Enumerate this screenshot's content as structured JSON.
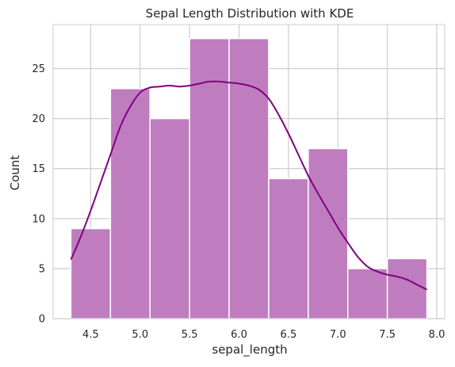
{
  "chart_data": {
    "type": "bar",
    "title": "Sepal Length Distribution with KDE",
    "xlabel": "sepal_length",
    "ylabel": "Count",
    "xlim": [
      4.12,
      8.08
    ],
    "ylim": [
      0,
      29.4
    ],
    "xticks": [
      "4.5",
      "5.0",
      "5.5",
      "6.0",
      "6.5",
      "7.0",
      "7.5",
      "8.0"
    ],
    "yticks": [
      "0",
      "5",
      "10",
      "15",
      "20",
      "25"
    ],
    "grid": true,
    "bins": [
      {
        "x0": 4.3,
        "x1": 4.7,
        "count": 9
      },
      {
        "x0": 4.7,
        "x1": 5.1,
        "count": 23
      },
      {
        "x0": 5.1,
        "x1": 5.5,
        "count": 20
      },
      {
        "x0": 5.5,
        "x1": 5.9,
        "count": 28
      },
      {
        "x0": 5.9,
        "x1": 6.3,
        "count": 28
      },
      {
        "x0": 6.3,
        "x1": 6.7,
        "count": 14
      },
      {
        "x0": 6.7,
        "x1": 7.1,
        "count": 17
      },
      {
        "x0": 7.1,
        "x1": 7.5,
        "count": 5
      },
      {
        "x0": 7.5,
        "x1": 7.9,
        "count": 6
      }
    ],
    "kde": {
      "x": [
        4.3,
        4.4,
        4.5,
        4.6,
        4.7,
        4.8,
        4.9,
        5.0,
        5.1,
        5.2,
        5.3,
        5.4,
        5.5,
        5.6,
        5.7,
        5.8,
        5.9,
        6.0,
        6.1,
        6.2,
        6.3,
        6.4,
        6.5,
        6.6,
        6.7,
        6.8,
        6.9,
        7.0,
        7.1,
        7.2,
        7.3,
        7.4,
        7.5,
        7.6,
        7.7,
        7.8,
        7.9
      ],
      "y": [
        5.9,
        8.2,
        10.8,
        13.6,
        16.4,
        19.2,
        21.2,
        22.6,
        23.1,
        23.2,
        23.3,
        23.2,
        23.3,
        23.5,
        23.7,
        23.7,
        23.6,
        23.5,
        23.3,
        22.9,
        22.0,
        20.4,
        18.5,
        16.4,
        14.3,
        12.5,
        10.8,
        9.1,
        7.6,
        6.2,
        5.2,
        4.7,
        4.4,
        4.2,
        3.9,
        3.4,
        2.9
      ]
    },
    "colors": {
      "bar_fill": "#bf7dbf",
      "bar_edge": "#ffffff",
      "kde_line": "#800080",
      "grid": "#cccccc",
      "frame": "#cccccc"
    }
  }
}
